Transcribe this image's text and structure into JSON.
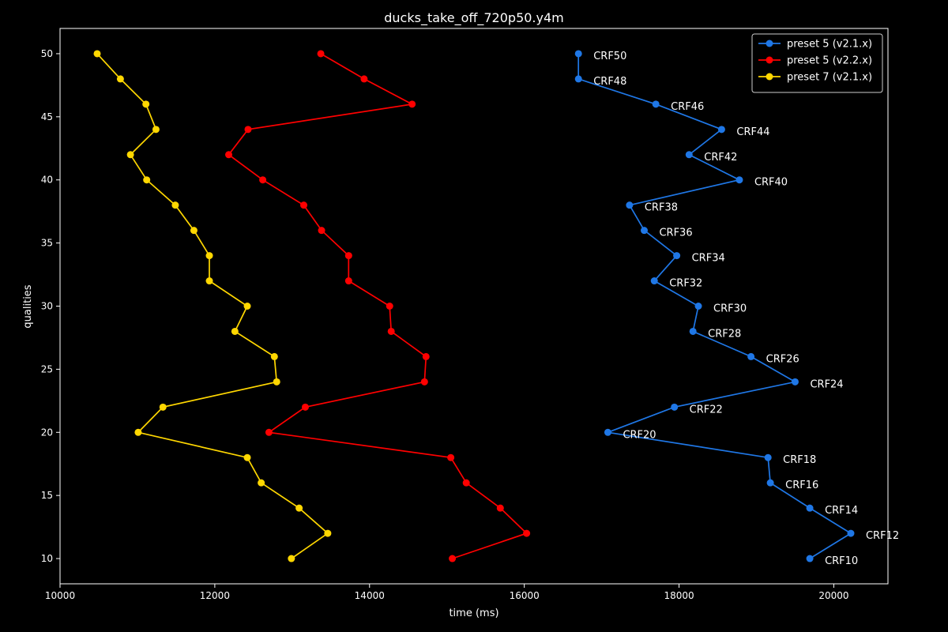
{
  "chart_data": {
    "type": "line",
    "title": "ducks_take_off_720p50.y4m",
    "xlabel": "time (ms)",
    "ylabel": "qualities",
    "xlim": [
      10000,
      20700
    ],
    "ylim": [
      8,
      52
    ],
    "xticks": [
      10000,
      12000,
      14000,
      16000,
      18000,
      20000
    ],
    "yticks": [
      10,
      15,
      20,
      25,
      30,
      35,
      40,
      45,
      50
    ],
    "grid": false,
    "legend_position": "top-right",
    "series": [
      {
        "name": "preset 5 (v2.1.x)",
        "color": "#1f77e6",
        "x": [
          16700,
          16700,
          17700,
          18550,
          18130,
          18780,
          17360,
          17550,
          17970,
          17680,
          18250,
          18180,
          18930,
          19500,
          17940,
          17080,
          19150,
          19180,
          19690,
          20220,
          19690
        ],
        "y": [
          50,
          48,
          46,
          44,
          42,
          40,
          38,
          36,
          34,
          32,
          30,
          28,
          26,
          24,
          22,
          20,
          18,
          16,
          14,
          12,
          10
        ],
        "labels": [
          "CRF50",
          "CRF48",
          "CRF46",
          "CRF44",
          "CRF42",
          "CRF40",
          "CRF38",
          "CRF36",
          "CRF34",
          "CRF32",
          "CRF30",
          "CRF28",
          "CRF26",
          "CRF24",
          "CRF22",
          "CRF20",
          "CRF18",
          "CRF16",
          "CRF14",
          "CRF12",
          "CRF10"
        ]
      },
      {
        "name": "preset 5 (v2.2.x)",
        "color": "#ff0000",
        "x": [
          13370,
          13930,
          14550,
          12430,
          12180,
          12620,
          13150,
          13380,
          13730,
          13730,
          14260,
          14280,
          14730,
          14710,
          13170,
          12700,
          15050,
          15250,
          15690,
          16030,
          15070
        ],
        "y": [
          50,
          48,
          46,
          44,
          42,
          40,
          38,
          36,
          34,
          32,
          30,
          28,
          26,
          24,
          22,
          20,
          18,
          16,
          14,
          12,
          10
        ]
      },
      {
        "name": "preset 7 (v2.1.x)",
        "color": "#ffd700",
        "x": [
          10480,
          10780,
          11110,
          11240,
          10910,
          11120,
          11490,
          11730,
          11930,
          11930,
          12420,
          12260,
          12770,
          12800,
          11330,
          11010,
          12420,
          12600,
          13090,
          13460,
          12990
        ],
        "y": [
          50,
          48,
          46,
          44,
          42,
          40,
          38,
          36,
          34,
          32,
          30,
          28,
          26,
          24,
          22,
          20,
          18,
          16,
          14,
          12,
          10
        ]
      }
    ]
  }
}
